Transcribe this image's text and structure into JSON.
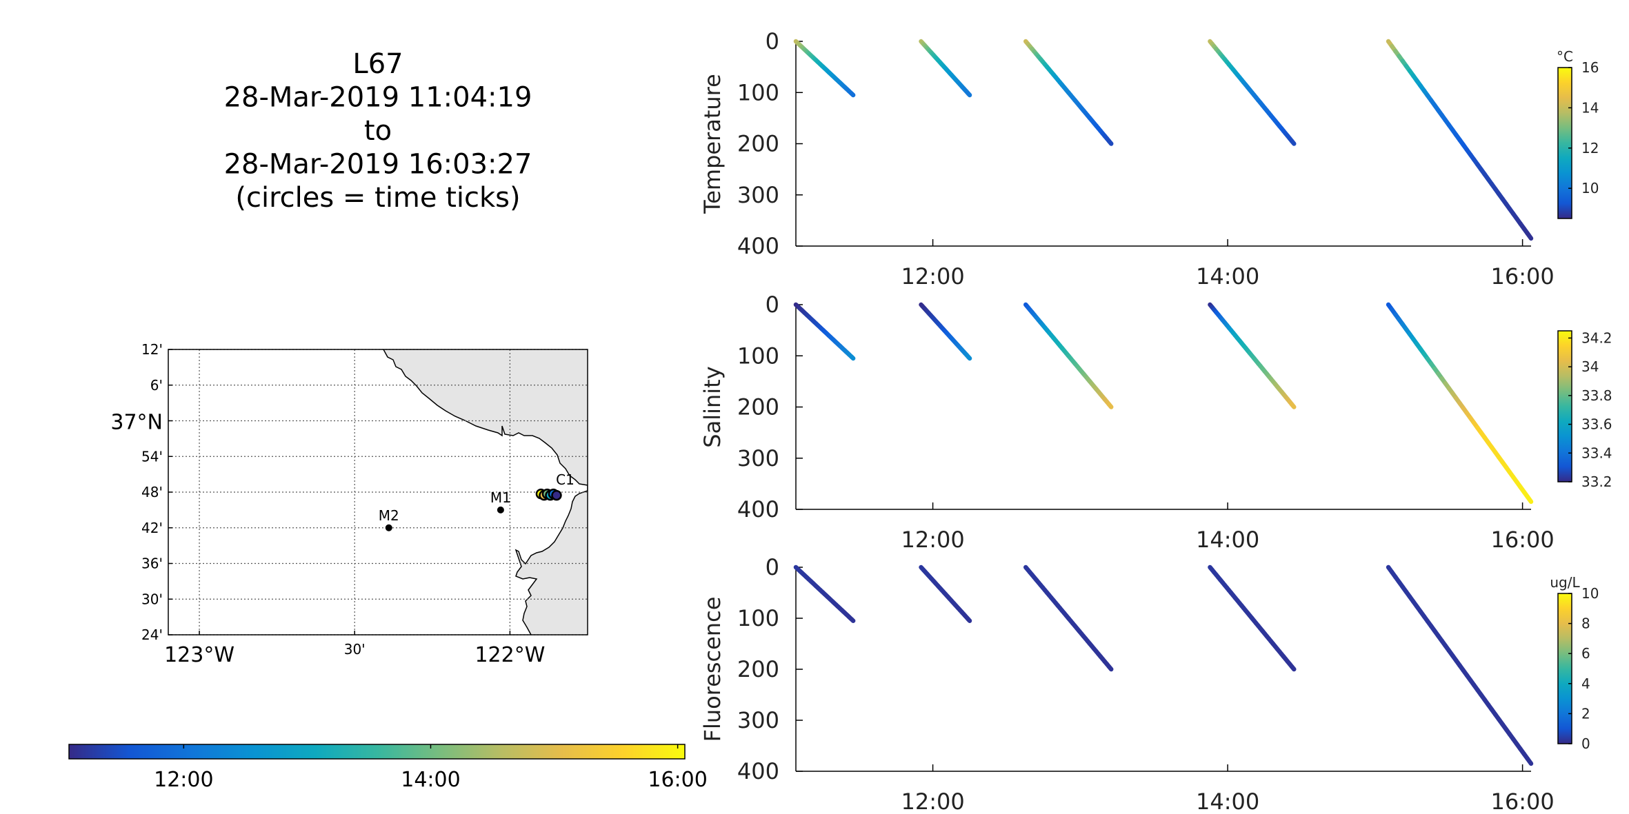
{
  "title": {
    "lines": [
      "L67",
      "28-Mar-2019 11:04:19",
      "to",
      "28-Mar-2019 16:03:27",
      "(circles = time ticks)"
    ]
  },
  "map": {
    "lat_ticks": [
      "12'",
      "6'",
      "37°N",
      "54'",
      "48'",
      "42'",
      "36'",
      "30'",
      "24'"
    ],
    "lat_values": [
      37.2,
      37.1,
      37.0,
      36.9,
      36.8,
      36.7,
      36.6,
      36.5,
      36.4
    ],
    "lon_ticks": [
      "123°W",
      "30'",
      "122°W"
    ],
    "lon_values": [
      -123.0,
      -122.5,
      -122.0
    ],
    "xlim": [
      -123.1,
      -121.75
    ],
    "ylim": [
      36.4,
      37.2
    ],
    "land_color": "#e5e5e5",
    "stations": [
      {
        "name": "M2",
        "lon": -122.39,
        "lat": 36.7
      },
      {
        "name": "M1",
        "lon": -122.03,
        "lat": 36.75
      },
      {
        "name": "C1",
        "lon": -121.84,
        "lat": 36.8
      }
    ],
    "track": {
      "lon_start": -121.9,
      "lon_end": -121.85,
      "lat": 36.795
    }
  },
  "time_colorbar": {
    "tick_labels": [
      "12:00",
      "14:00",
      "16:00"
    ],
    "tick_values": [
      12.0,
      14.0,
      16.0
    ],
    "range": [
      11.071,
      16.058
    ]
  },
  "chart_data": [
    {
      "type": "scatter",
      "ylabel": "Temperature",
      "x_tick_labels": [
        "12:00",
        "14:00",
        "16:00"
      ],
      "x_tick_values": [
        12.0,
        14.0,
        16.0
      ],
      "xlim": [
        11.071,
        16.058
      ],
      "ylim": [
        0,
        400
      ],
      "y_ticks": [
        0,
        100,
        200,
        300,
        400
      ],
      "y_reversed": true,
      "colorbar": {
        "unit": "°C",
        "ticks": [
          10,
          12,
          14,
          16
        ],
        "range": [
          8.5,
          16.0
        ]
      },
      "profiles": [
        {
          "t_start": 11.071,
          "t_end": 11.46,
          "depth_max": 105,
          "values": [
            {
              "d": 0,
              "v": 14.0
            },
            {
              "d": 25,
              "v": 12.5
            },
            {
              "d": 60,
              "v": 11.0
            },
            {
              "d": 105,
              "v": 9.8
            }
          ]
        },
        {
          "t_start": 11.92,
          "t_end": 12.25,
          "depth_max": 105,
          "values": [
            {
              "d": 0,
              "v": 13.8
            },
            {
              "d": 25,
              "v": 12.3
            },
            {
              "d": 60,
              "v": 11.0
            },
            {
              "d": 105,
              "v": 10.0
            }
          ]
        },
        {
          "t_start": 12.63,
          "t_end": 13.21,
          "depth_max": 200,
          "values": [
            {
              "d": 0,
              "v": 14.2
            },
            {
              "d": 30,
              "v": 12.5
            },
            {
              "d": 90,
              "v": 10.5
            },
            {
              "d": 200,
              "v": 9.0
            }
          ]
        },
        {
          "t_start": 13.88,
          "t_end": 14.45,
          "depth_max": 200,
          "values": [
            {
              "d": 0,
              "v": 14.0
            },
            {
              "d": 30,
              "v": 12.3
            },
            {
              "d": 90,
              "v": 10.3
            },
            {
              "d": 200,
              "v": 9.0
            }
          ]
        },
        {
          "t_start": 15.09,
          "t_end": 16.058,
          "depth_max": 385,
          "values": [
            {
              "d": 0,
              "v": 14.2
            },
            {
              "d": 40,
              "v": 12.5
            },
            {
              "d": 120,
              "v": 10.0
            },
            {
              "d": 250,
              "v": 9.0
            },
            {
              "d": 385,
              "v": 8.6
            }
          ]
        }
      ]
    },
    {
      "type": "scatter",
      "ylabel": "Salinity",
      "x_tick_labels": [
        "12:00",
        "14:00",
        "16:00"
      ],
      "x_tick_values": [
        12.0,
        14.0,
        16.0
      ],
      "xlim": [
        11.071,
        16.058
      ],
      "ylim": [
        0,
        400
      ],
      "y_ticks": [
        0,
        100,
        200,
        300,
        400
      ],
      "y_reversed": true,
      "colorbar": {
        "unit": "",
        "ticks": [
          33.2,
          33.4,
          33.6,
          33.8,
          34,
          34.2
        ],
        "range": [
          33.2,
          34.25
        ]
      },
      "profiles": [
        {
          "t_start": 11.071,
          "t_end": 11.46,
          "depth_max": 105,
          "values": [
            {
              "d": 0,
              "v": 33.2
            },
            {
              "d": 50,
              "v": 33.3
            },
            {
              "d": 105,
              "v": 33.5
            }
          ]
        },
        {
          "t_start": 11.92,
          "t_end": 12.25,
          "depth_max": 105,
          "values": [
            {
              "d": 0,
              "v": 33.2
            },
            {
              "d": 50,
              "v": 33.3
            },
            {
              "d": 105,
              "v": 33.5
            }
          ]
        },
        {
          "t_start": 12.63,
          "t_end": 13.21,
          "depth_max": 200,
          "values": [
            {
              "d": 0,
              "v": 33.3
            },
            {
              "d": 60,
              "v": 33.6
            },
            {
              "d": 130,
              "v": 33.8
            },
            {
              "d": 200,
              "v": 34.05
            }
          ]
        },
        {
          "t_start": 13.88,
          "t_end": 14.45,
          "depth_max": 200,
          "values": [
            {
              "d": 0,
              "v": 33.2
            },
            {
              "d": 60,
              "v": 33.6
            },
            {
              "d": 130,
              "v": 33.8
            },
            {
              "d": 200,
              "v": 34.05
            }
          ]
        },
        {
          "t_start": 15.09,
          "t_end": 16.058,
          "depth_max": 385,
          "values": [
            {
              "d": 0,
              "v": 33.3
            },
            {
              "d": 80,
              "v": 33.6
            },
            {
              "d": 160,
              "v": 33.9
            },
            {
              "d": 250,
              "v": 34.15
            },
            {
              "d": 385,
              "v": 34.22
            }
          ]
        }
      ]
    },
    {
      "type": "scatter",
      "ylabel": "Fluorescence",
      "x_tick_labels": [
        "12:00",
        "14:00",
        "16:00"
      ],
      "x_tick_values": [
        12.0,
        14.0,
        16.0
      ],
      "xlim": [
        11.071,
        16.058
      ],
      "ylim": [
        0,
        400
      ],
      "y_ticks": [
        0,
        100,
        200,
        300,
        400
      ],
      "y_reversed": true,
      "colorbar": {
        "unit": "ug/L",
        "ticks": [
          0,
          2,
          4,
          6,
          8,
          10
        ],
        "range": [
          0,
          10
        ]
      },
      "profiles": [
        {
          "t_start": 11.071,
          "t_end": 11.46,
          "depth_max": 105,
          "values": [
            {
              "d": 0,
              "v": 0.3
            },
            {
              "d": 105,
              "v": 0.2
            }
          ]
        },
        {
          "t_start": 11.92,
          "t_end": 12.25,
          "depth_max": 105,
          "values": [
            {
              "d": 0,
              "v": 0.3
            },
            {
              "d": 105,
              "v": 0.2
            }
          ]
        },
        {
          "t_start": 12.63,
          "t_end": 13.21,
          "depth_max": 200,
          "values": [
            {
              "d": 0,
              "v": 0.3
            },
            {
              "d": 200,
              "v": 0.2
            }
          ]
        },
        {
          "t_start": 13.88,
          "t_end": 14.45,
          "depth_max": 200,
          "values": [
            {
              "d": 0,
              "v": 0.3
            },
            {
              "d": 200,
              "v": 0.2
            }
          ]
        },
        {
          "t_start": 15.09,
          "t_end": 16.058,
          "depth_max": 385,
          "values": [
            {
              "d": 0,
              "v": 0.3
            },
            {
              "d": 385,
              "v": 0.2
            }
          ]
        }
      ]
    }
  ]
}
